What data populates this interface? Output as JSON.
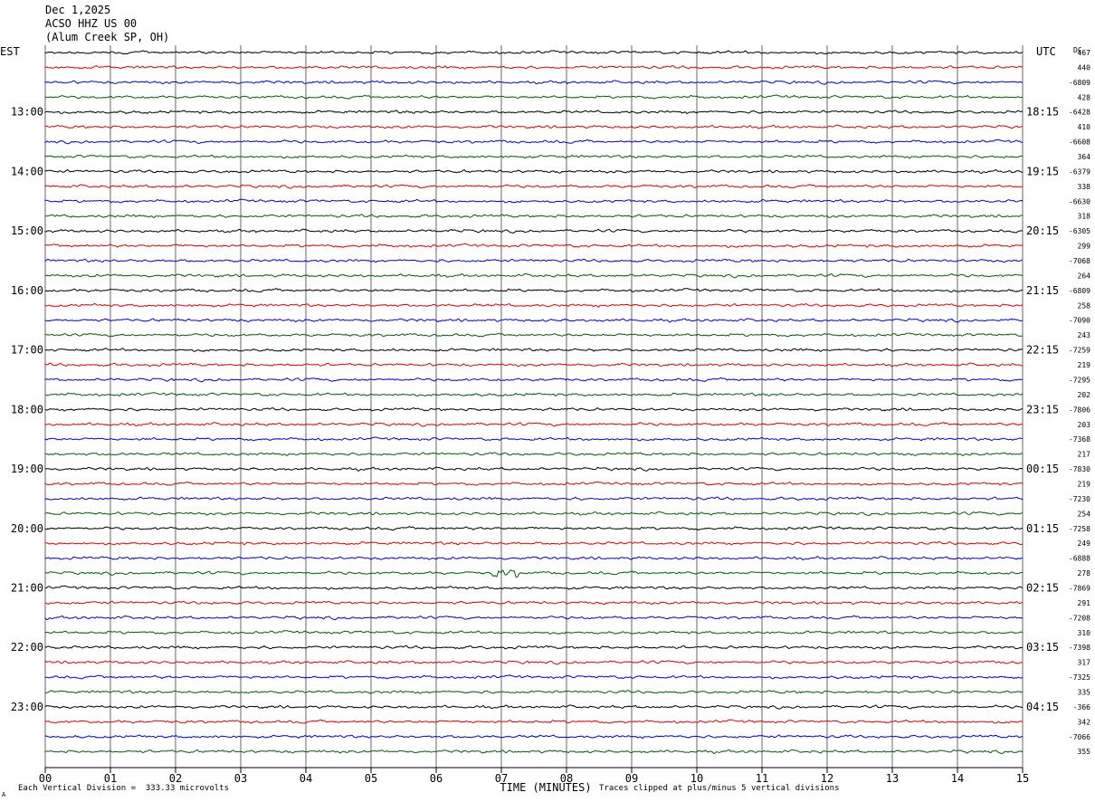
{
  "header": {
    "date": "Dec 1,2025",
    "station": "ACSO HHZ US 00",
    "location": "(Alum Creek SP, OH)"
  },
  "labels": {
    "left_tz": "EST",
    "right_tz": "UTC",
    "dc": "DC",
    "xlabel": "TIME (MINUTES)",
    "scale_note": "Each Vertical Division =  333.33 microvolts",
    "clip_note": "Traces clipped at plus/minus 5 vertical divisions",
    "corner_mark": "A"
  },
  "colors": {
    "trace_cycle": [
      "#000000",
      "#e00000",
      "#0000e0",
      "#006000"
    ],
    "grid": "#000000"
  },
  "chart_data": {
    "type": "line",
    "title": "ACSO HHZ US 00",
    "xlabel": "TIME (MINUTES)",
    "xlim": [
      0,
      15
    ],
    "x_ticks": [
      "00",
      "01",
      "02",
      "03",
      "04",
      "05",
      "06",
      "07",
      "08",
      "09",
      "10",
      "11",
      "12",
      "13",
      "14",
      "15"
    ],
    "rows_per_hour": 4,
    "left_hour_labels": [
      "13:00",
      "14:00",
      "15:00",
      "16:00",
      "17:00",
      "18:00",
      "19:00",
      "20:00",
      "21:00",
      "22:00",
      "23:00"
    ],
    "right_hour_labels": [
      "18:15",
      "19:15",
      "20:15",
      "21:15",
      "22:15",
      "23:15",
      "00:15",
      "01:15",
      "02:15",
      "03:15",
      "04:15"
    ],
    "dc_offsets": [
      "467",
      "440",
      "-6809",
      "428",
      "-6428",
      "410",
      "-6608",
      "364",
      "-6379",
      "338",
      "-6630",
      "318",
      "-6305",
      "299",
      "-7068",
      "264",
      "-6809",
      "258",
      "-7090",
      "243",
      "-7259",
      "219",
      "-7295",
      "202",
      "-7806",
      "203",
      "-7368",
      "217",
      "-7830",
      "219",
      "-7230",
      "254",
      "-7258",
      "249",
      "-6888",
      "278",
      "-7869",
      "291",
      "-7208",
      "310",
      "-7398",
      "317",
      "-7325",
      "335",
      "-366",
      "342",
      "-7066",
      "355"
    ],
    "events": [
      {
        "row": 35,
        "minute": 7.1,
        "note": "burst"
      }
    ]
  }
}
